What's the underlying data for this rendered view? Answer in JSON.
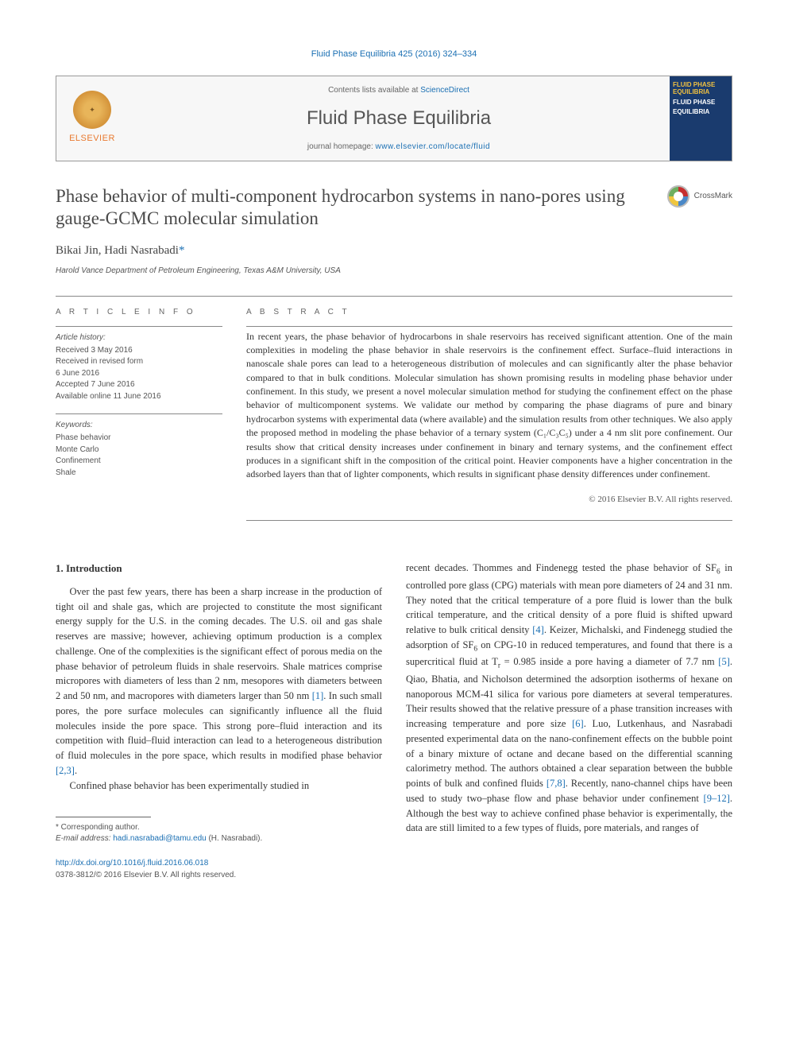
{
  "citation": "Fluid Phase Equilibria 425 (2016) 324–334",
  "header": {
    "contents_prefix": "Contents lists available at ",
    "contents_link": "ScienceDirect",
    "journal_name": "Fluid Phase Equilibria",
    "homepage_prefix": "journal homepage: ",
    "homepage_link": "www.elsevier.com/locate/fluid",
    "publisher": "ELSEVIER",
    "cover_line1": "FLUID PHASE",
    "cover_line2": "EQUILIBRIA",
    "cover_line3": "FLUID PHASE",
    "cover_line4": "EQUILIBRIA"
  },
  "crossmark": "CrossMark",
  "title": "Phase behavior of multi-component hydrocarbon systems in nano-pores using gauge-GCMC molecular simulation",
  "authors": {
    "a1": "Bikai Jin",
    "sep": ", ",
    "a2": "Hadi Nasrabadi",
    "corr_mark": "*"
  },
  "affiliation": "Harold Vance Department of Petroleum Engineering, Texas A&M University, USA",
  "labels": {
    "article_info": "A R T I C L E   I N F O",
    "abstract": "A B S T R A C T"
  },
  "history": {
    "head": "Article history:",
    "h1": "Received 3 May 2016",
    "h2": "Received in revised form",
    "h2b": "6 June 2016",
    "h3": "Accepted 7 June 2016",
    "h4": "Available online 11 June 2016"
  },
  "keywords": {
    "head": "Keywords:",
    "k1": "Phase behavior",
    "k2": "Monte Carlo",
    "k3": "Confinement",
    "k4": "Shale"
  },
  "abstract": "In recent years, the phase behavior of hydrocarbons in shale reservoirs has received significant attention. One of the main complexities in modeling the phase behavior in shale reservoirs is the confinement effect. Surface–fluid interactions in nanoscale shale pores can lead to a heterogeneous distribution of molecules and can significantly alter the phase behavior compared to that in bulk conditions. Molecular simulation has shown promising results in modeling phase behavior under confinement. In this study, we present a novel molecular simulation method for studying the confinement effect on the phase behavior of multicomponent systems. We validate our method by comparing the phase diagrams of pure and binary hydrocarbon systems with experimental data (where available) and the simulation results from other techniques. We also apply the proposed method in modeling the phase behavior of a ternary system (C₁/C₃C₅) under a 4 nm slit pore confinement. Our results show that critical density increases under confinement in binary and ternary systems, and the confinement effect produces in a significant shift in the composition of the critical point. Heavier components have a higher concentration in the adsorbed layers than that of lighter components, which results in significant phase density differences under confinement.",
  "copyright_abstract": "© 2016 Elsevier B.V. All rights reserved.",
  "intro_heading": "1. Introduction",
  "body": {
    "p1a": "Over the past few years, there has been a sharp increase in the production of tight oil and shale gas, which are projected to constitute the most significant energy supply for the U.S. in the coming decades. The U.S. oil and gas shale reserves are massive; however, achieving optimum production is a complex challenge. One of the complexities is the significant effect of porous media on the phase behavior of petroleum fluids in shale reservoirs. Shale matrices comprise micropores with diameters of less than 2 nm, mesopores with diameters between 2 and 50 nm, and macropores with diameters larger than 50 nm ",
    "r1": "[1]",
    "p1b": ". In such small pores, the pore surface molecules can significantly influence all the fluid molecules inside the pore space. This strong pore–fluid interaction and its competition with fluid–fluid interaction can lead to a heterogeneous distribution of fluid molecules in the pore space, which results in modified phase behavior ",
    "r23": "[2,3]",
    "p1c": ".",
    "p2": "Confined phase behavior has been experimentally studied in",
    "p3a": "recent decades. Thommes and Findenegg tested the phase behavior of SF",
    "sf6": "6",
    "p3b": " in controlled pore glass (CPG) materials with mean pore diameters of 24 and 31 nm. They noted that the critical temperature of a pore fluid is lower than the bulk critical temperature, and the critical density of a pore fluid is shifted upward relative to bulk critical density ",
    "r4": "[4]",
    "p3c": ". Keizer, Michalski, and Findenegg studied the adsorption of SF",
    "p3d": " on CPG-10 in reduced temperatures, and found that there is a supercritical fluid at T",
    "tr": "r",
    "p3e": " = 0.985 inside a pore having a diameter of 7.7 nm ",
    "r5": "[5]",
    "p3f": ". Qiao, Bhatia, and Nicholson determined the adsorption isotherms of hexane on nanoporous MCM-41 silica for various pore diameters at several temperatures. Their results showed that the relative pressure of a phase transition increases with increasing temperature and pore size ",
    "r6": "[6]",
    "p3g": ". Luo, Lutkenhaus, and Nasrabadi presented experimental data on the nano-confinement effects on the bubble point of a binary mixture of octane and decane based on the differential scanning calorimetry method. The authors obtained a clear separation between the bubble points of bulk and confined fluids ",
    "r78": "[7,8]",
    "p3h": ". Recently, nano-channel chips have been used to study two–phase flow and phase behavior under confinement ",
    "r912": "[9–12]",
    "p3i": ". Although the best way to achieve confined phase behavior is experimentally, the data are still limited to a few types of fluids, pore materials, and ranges of"
  },
  "footnote": {
    "corr": "* Corresponding author.",
    "email_label": "E-mail address: ",
    "email": "hadi.nasrabadi@tamu.edu",
    "email_suffix": " (H. Nasrabadi)."
  },
  "footer": {
    "doi": "http://dx.doi.org/10.1016/j.fluid.2016.06.018",
    "issn_line": "0378-3812/© 2016 Elsevier B.V. All rights reserved."
  },
  "colors": {
    "link": "#1a6fb3",
    "text": "#333333",
    "muted": "#666666",
    "rule": "#888888",
    "elsevier_orange": "#e8792f",
    "cover_bg": "#1a3b6e",
    "cover_gold": "#f0c040"
  }
}
